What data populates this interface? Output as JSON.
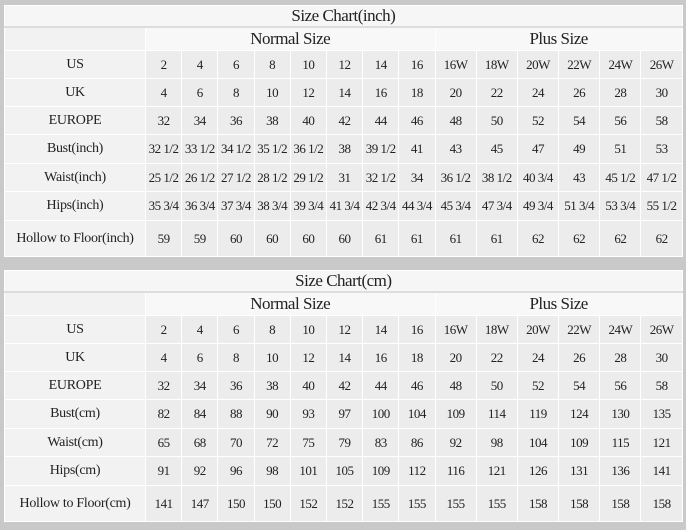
{
  "columns": [
    "2",
    "4",
    "6",
    "8",
    "10",
    "12",
    "14",
    "16",
    "16W",
    "18W",
    "20W",
    "22W",
    "24W",
    "26W"
  ],
  "tables": [
    {
      "title": "Size Chart(inch)",
      "normal_label": "Normal Size",
      "plus_label": "Plus Size",
      "rows": [
        {
          "label": "US",
          "values": [
            "2",
            "4",
            "6",
            "8",
            "10",
            "12",
            "14",
            "16",
            "16W",
            "18W",
            "20W",
            "22W",
            "24W",
            "26W"
          ]
        },
        {
          "label": "UK",
          "values": [
            "4",
            "6",
            "8",
            "10",
            "12",
            "14",
            "16",
            "18",
            "20",
            "22",
            "24",
            "26",
            "28",
            "30"
          ]
        },
        {
          "label": "EUROPE",
          "values": [
            "32",
            "34",
            "36",
            "38",
            "40",
            "42",
            "44",
            "46",
            "48",
            "50",
            "52",
            "54",
            "56",
            "58"
          ]
        },
        {
          "label": "Bust(inch)",
          "values": [
            "32 1/2",
            "33 1/2",
            "34 1/2",
            "35 1/2",
            "36 1/2",
            "38",
            "39 1/2",
            "41",
            "43",
            "45",
            "47",
            "49",
            "51",
            "53"
          ]
        },
        {
          "label": "Waist(inch)",
          "values": [
            "25 1/2",
            "26 1/2",
            "27 1/2",
            "28 1/2",
            "29 1/2",
            "31",
            "32 1/2",
            "34",
            "36 1/2",
            "38 1/2",
            "40 3/4",
            "43",
            "45 1/2",
            "47 1/2"
          ]
        },
        {
          "label": "Hips(inch)",
          "values": [
            "35 3/4",
            "36 3/4",
            "37 3/4",
            "38 3/4",
            "39 3/4",
            "41 3/4",
            "42 3/4",
            "44 3/4",
            "45 3/4",
            "47 3/4",
            "49 3/4",
            "51 3/4",
            "53 3/4",
            "55 1/2"
          ]
        },
        {
          "label": "Hollow to Floor(inch)",
          "values": [
            "59",
            "59",
            "60",
            "60",
            "60",
            "60",
            "61",
            "61",
            "61",
            "61",
            "62",
            "62",
            "62",
            "62"
          ]
        }
      ]
    },
    {
      "title": "Size Chart(cm)",
      "normal_label": "Normal Size",
      "plus_label": "Plus Size",
      "rows": [
        {
          "label": "US",
          "values": [
            "2",
            "4",
            "6",
            "8",
            "10",
            "12",
            "14",
            "16",
            "16W",
            "18W",
            "20W",
            "22W",
            "24W",
            "26W"
          ]
        },
        {
          "label": "UK",
          "values": [
            "4",
            "6",
            "8",
            "10",
            "12",
            "14",
            "16",
            "18",
            "20",
            "22",
            "24",
            "26",
            "28",
            "30"
          ]
        },
        {
          "label": "EUROPE",
          "values": [
            "32",
            "34",
            "36",
            "38",
            "40",
            "42",
            "44",
            "46",
            "48",
            "50",
            "52",
            "54",
            "56",
            "58"
          ]
        },
        {
          "label": "Bust(cm)",
          "values": [
            "82",
            "84",
            "88",
            "90",
            "93",
            "97",
            "100",
            "104",
            "109",
            "114",
            "119",
            "124",
            "130",
            "135"
          ]
        },
        {
          "label": "Waist(cm)",
          "values": [
            "65",
            "68",
            "70",
            "72",
            "75",
            "79",
            "83",
            "86",
            "92",
            "98",
            "104",
            "109",
            "115",
            "121"
          ]
        },
        {
          "label": "Hips(cm)",
          "values": [
            "91",
            "92",
            "96",
            "98",
            "101",
            "105",
            "109",
            "112",
            "116",
            "121",
            "126",
            "131",
            "136",
            "141"
          ]
        },
        {
          "label": "Hollow to Floor(cm)",
          "values": [
            "141",
            "147",
            "150",
            "150",
            "152",
            "152",
            "155",
            "155",
            "155",
            "155",
            "158",
            "158",
            "158",
            "158"
          ]
        }
      ]
    }
  ]
}
